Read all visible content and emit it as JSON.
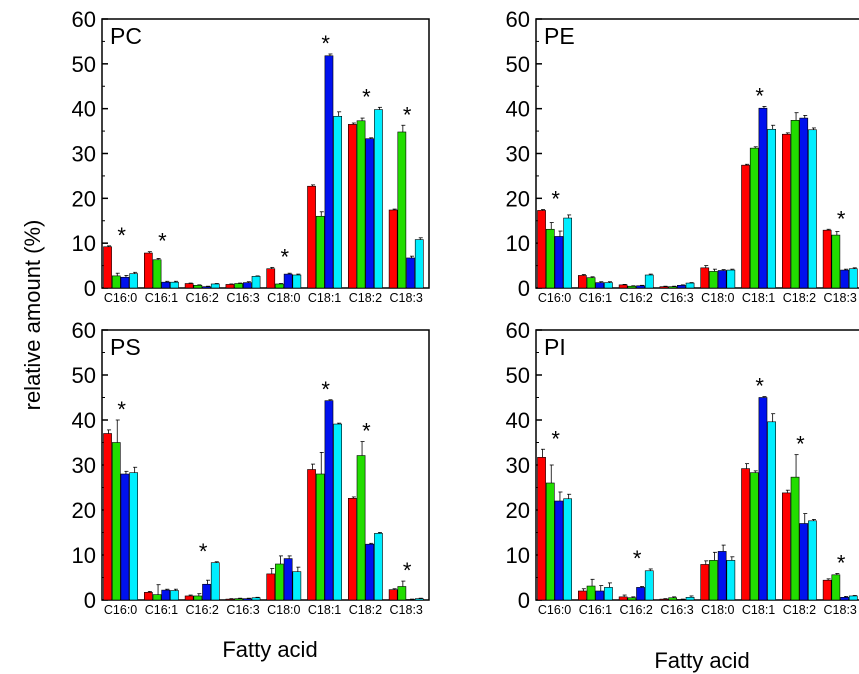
{
  "chart_data": {
    "type": "bar",
    "ylabel": "relative amount (%)",
    "xlabel": "Fatty acid",
    "ylim": [
      0,
      60
    ],
    "yticks": [
      0,
      10,
      20,
      30,
      40,
      50,
      60
    ],
    "categories": [
      "C16:0",
      "C16:1",
      "C16:2",
      "C16:3",
      "C18:0",
      "C18:1",
      "C18:2",
      "C18:3"
    ],
    "series_colors": [
      "#ff0000",
      "#22dd00",
      "#0011ee",
      "#00eeff"
    ],
    "significance_marker": "*",
    "panels": [
      {
        "title": "PC",
        "values": [
          [
            9.2,
            2.7,
            2.4,
            3.2
          ],
          [
            7.8,
            6.3,
            1.3,
            1.3
          ],
          [
            1.0,
            0.6,
            0.3,
            0.9
          ],
          [
            0.8,
            1.0,
            1.2,
            2.6
          ],
          [
            4.3,
            0.9,
            3.1,
            2.9
          ],
          [
            22.7,
            16.0,
            51.8,
            38.3
          ],
          [
            36.5,
            37.3,
            33.3,
            39.8
          ],
          [
            17.4,
            34.8,
            6.7,
            10.8
          ]
        ],
        "errors": [
          [
            0.2,
            0.6,
            0.4,
            0.3
          ],
          [
            0.3,
            0.3,
            0.2,
            0.2
          ],
          [
            0.1,
            0.1,
            0.1,
            0.1
          ],
          [
            0.1,
            0.1,
            0.2,
            0.1
          ],
          [
            0.3,
            0.1,
            0.2,
            0.2
          ],
          [
            0.3,
            1.0,
            0.4,
            1.0
          ],
          [
            0.3,
            0.6,
            0.2,
            0.5
          ],
          [
            0.2,
            1.5,
            0.4,
            0.4
          ]
        ],
        "starred": [
          true,
          true,
          false,
          false,
          true,
          true,
          true,
          true
        ]
      },
      {
        "title": "PE",
        "values": [
          [
            17.3,
            13.1,
            11.5,
            15.6
          ],
          [
            2.8,
            2.3,
            1.2,
            1.2
          ],
          [
            0.7,
            0.4,
            0.5,
            2.9
          ],
          [
            0.3,
            0.3,
            0.6,
            1.1
          ],
          [
            4.5,
            3.7,
            3.9,
            4.0
          ],
          [
            27.4,
            31.2,
            40.1,
            35.4
          ],
          [
            34.3,
            37.4,
            37.9,
            35.3
          ],
          [
            12.9,
            11.8,
            4.0,
            4.3
          ]
        ],
        "errors": [
          [
            0.2,
            1.5,
            1.2,
            0.7
          ],
          [
            0.2,
            0.2,
            0.2,
            0.2
          ],
          [
            0.1,
            0.1,
            0.1,
            0.2
          ],
          [
            0.1,
            0.1,
            0.1,
            0.1
          ],
          [
            0.5,
            0.5,
            0.2,
            0.2
          ],
          [
            0.2,
            0.3,
            0.4,
            0.9
          ],
          [
            0.3,
            1.7,
            0.6,
            0.4
          ],
          [
            0.2,
            0.8,
            0.2,
            0.2
          ]
        ],
        "starred": [
          true,
          false,
          false,
          false,
          false,
          true,
          false,
          true
        ]
      },
      {
        "title": "PS",
        "values": [
          [
            37.0,
            35.0,
            28.0,
            28.3
          ],
          [
            1.7,
            1.2,
            2.2,
            2.1
          ],
          [
            0.9,
            0.9,
            3.5,
            8.3
          ],
          [
            0.2,
            0.3,
            0.3,
            0.5
          ],
          [
            5.8,
            8.0,
            9.2,
            6.3
          ],
          [
            29.0,
            28.0,
            44.3,
            39.1
          ],
          [
            22.6,
            32.1,
            12.4,
            14.8
          ],
          [
            2.3,
            3.0,
            0.1,
            0.3
          ]
        ],
        "errors": [
          [
            0.8,
            5.0,
            0.6,
            1.2
          ],
          [
            0.2,
            2.2,
            0.2,
            0.3
          ],
          [
            0.2,
            0.5,
            0.9,
            0.2
          ],
          [
            0.1,
            0.1,
            0.1,
            0.1
          ],
          [
            1.2,
            1.8,
            0.6,
            1.0
          ],
          [
            1.2,
            4.8,
            0.2,
            0.2
          ],
          [
            0.3,
            3.1,
            0.2,
            0.2
          ],
          [
            0.2,
            1.2,
            0.1,
            0.1
          ]
        ],
        "starred": [
          true,
          false,
          true,
          false,
          false,
          true,
          true,
          true
        ]
      },
      {
        "title": "PI",
        "values": [
          [
            31.7,
            26.0,
            22.0,
            22.5
          ],
          [
            2.0,
            3.1,
            2.0,
            2.8
          ],
          [
            0.7,
            0.5,
            2.8,
            6.5
          ],
          [
            0.2,
            0.5,
            0.1,
            0.6
          ],
          [
            7.9,
            8.8,
            10.8,
            8.8
          ],
          [
            29.2,
            28.3,
            45.0,
            39.6
          ],
          [
            23.8,
            27.3,
            17.0,
            17.6
          ],
          [
            4.4,
            5.6,
            0.6,
            0.9
          ]
        ],
        "errors": [
          [
            1.8,
            4.0,
            2.0,
            1.0
          ],
          [
            0.5,
            1.5,
            1.2,
            1.0
          ],
          [
            0.4,
            0.2,
            0.2,
            0.4
          ],
          [
            0.1,
            0.2,
            0.1,
            0.3
          ],
          [
            0.8,
            1.8,
            1.4,
            0.8
          ],
          [
            1.1,
            0.4,
            0.2,
            1.8
          ],
          [
            0.6,
            5.0,
            2.2,
            0.3
          ],
          [
            0.3,
            0.3,
            0.2,
            0.1
          ]
        ],
        "starred": [
          true,
          false,
          true,
          false,
          false,
          true,
          true,
          true
        ]
      }
    ]
  }
}
